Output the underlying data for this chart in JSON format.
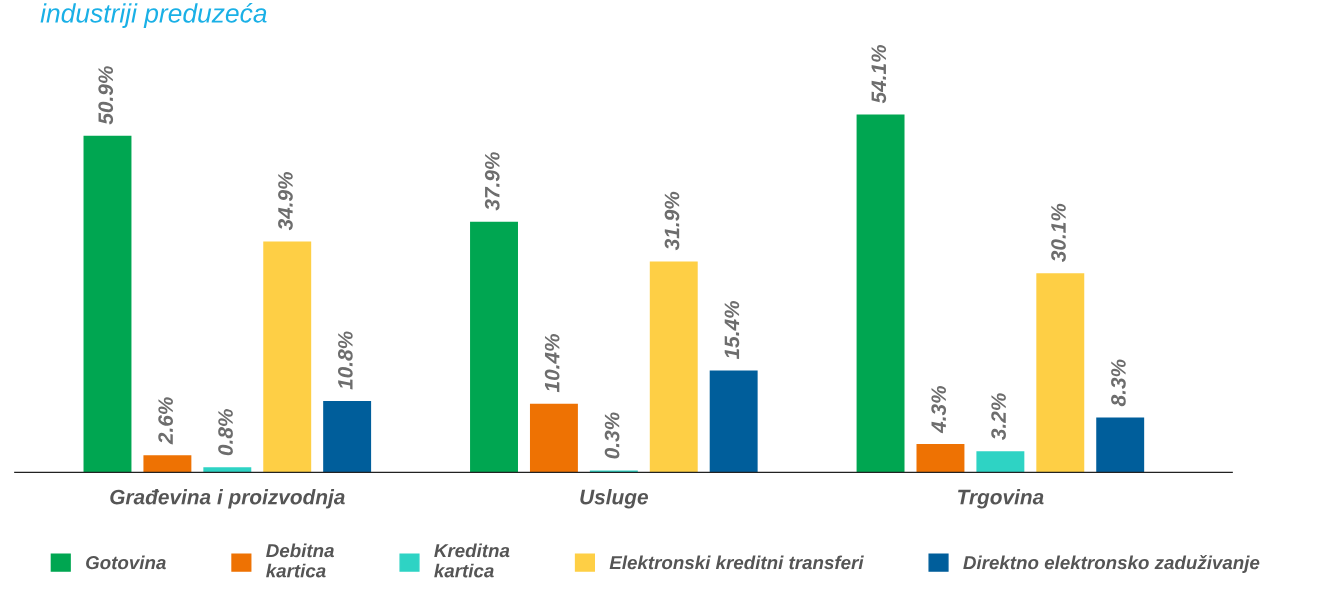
{
  "chart_data": {
    "type": "bar",
    "title": "industriji preduzeća",
    "categories": [
      "Građevina i proizvodnja",
      "Usluge",
      "Trgovina"
    ],
    "series": [
      {
        "name": "Gotovina",
        "color": "#00a651",
        "values": [
          50.9,
          37.9,
          54.1
        ],
        "value_labels": [
          "50.9%",
          "37.9%",
          "54.1%"
        ]
      },
      {
        "name": "Debitna\nkartica",
        "color": "#ee7203",
        "values": [
          2.6,
          10.4,
          4.3
        ],
        "value_labels": [
          "2.6%",
          "10.4%",
          "4.3%"
        ]
      },
      {
        "name": "Kreditna\nkartica",
        "color": "#2ed3c4",
        "values": [
          0.8,
          0.3,
          3.2
        ],
        "value_labels": [
          "0.8%",
          "0.3%",
          "3.2%"
        ]
      },
      {
        "name": "Elektronski kreditni transferi",
        "color": "#fecf45",
        "values": [
          34.9,
          31.9,
          30.1
        ],
        "value_labels": [
          "34.9%",
          "31.9%",
          "30.1%"
        ]
      },
      {
        "name": "Direktno elektronsko zaduživanje",
        "color": "#005e9b",
        "values": [
          10.8,
          15.4,
          8.3
        ],
        "value_labels": [
          "10.8%",
          "15.4%",
          "8.3%"
        ]
      }
    ],
    "legend": "bottom"
  }
}
